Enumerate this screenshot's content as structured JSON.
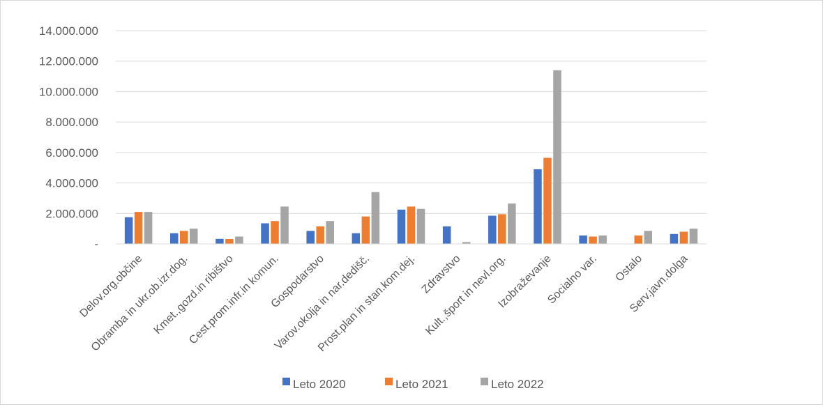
{
  "chart_data": {
    "type": "bar",
    "title": "",
    "xlabel": "",
    "ylabel": "",
    "ylim": [
      0,
      14000000
    ],
    "y_ticks": [
      0,
      2000000,
      4000000,
      6000000,
      8000000,
      10000000,
      12000000,
      14000000
    ],
    "y_tick_labels": [
      "-",
      "2.000.000",
      "4.000.000",
      "6.000.000",
      "8.000.000",
      "10.000.000",
      "12.000.000",
      "14.000.000"
    ],
    "grid": true,
    "legend_position": "bottom",
    "categories": [
      "Delov.org.občine",
      "Obramba in ukr.ob.izr.dog.",
      "Kmet.,gozd.in ribištvo",
      "Cest.prom.infr.in komun.",
      "Gospodarstvo",
      "Varov.okolja in nar.dedišč.",
      "Prost.plan in stan.kom.dej.",
      "Zdravstvo",
      "Kult.,šport in nevl.org.",
      "Izobraževanje",
      "Socialno var.",
      "Ostalo",
      "Serv.javn.dolga"
    ],
    "series": [
      {
        "name": "Leto 2020",
        "color": "#4472C4",
        "values": [
          1750000,
          700000,
          330000,
          1350000,
          850000,
          700000,
          2250000,
          1150000,
          1850000,
          4900000,
          550000,
          0,
          650000
        ]
      },
      {
        "name": "Leto 2021",
        "color": "#ED7D31",
        "values": [
          2100000,
          850000,
          320000,
          1500000,
          1150000,
          1800000,
          2450000,
          20000,
          1950000,
          5650000,
          480000,
          550000,
          800000
        ]
      },
      {
        "name": "Leto 2022",
        "color": "#A5A5A5",
        "values": [
          2100000,
          1000000,
          480000,
          2450000,
          1500000,
          3400000,
          2300000,
          120000,
          2650000,
          11400000,
          550000,
          850000,
          1000000
        ]
      }
    ]
  }
}
